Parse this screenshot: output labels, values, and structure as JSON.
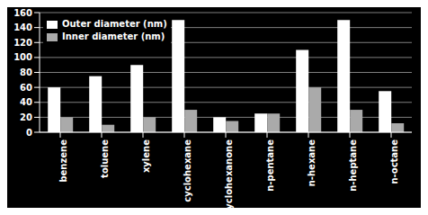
{
  "chart_data": {
    "type": "bar",
    "categories": [
      "benzene",
      "toluene",
      "xylene",
      "cyclohexane",
      "cyclohexanone",
      "n-pentane",
      "n-hexane",
      "n-heptane",
      "n-octane"
    ],
    "series": [
      {
        "name": "Outer diameter (nm)",
        "color": "#ffffff",
        "values": [
          60,
          75,
          90,
          150,
          20,
          25,
          110,
          150,
          55
        ]
      },
      {
        "name": "Inner diameter (nm)",
        "color": "#aaaaaa",
        "values": [
          20,
          10,
          20,
          30,
          15,
          25,
          60,
          30,
          12
        ]
      }
    ],
    "ylim": [
      0,
      160
    ],
    "yticks": [
      0,
      20,
      40,
      60,
      80,
      100,
      120,
      140,
      160
    ],
    "grid": true,
    "legend": "upper left"
  }
}
